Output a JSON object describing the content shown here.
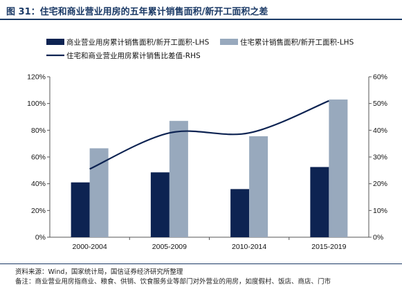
{
  "title": "图 31：住宅和商业营业用房的五年累计销售面积/新开工面积之差",
  "chart_data": {
    "type": "bar",
    "categories": [
      "2000-2004",
      "2005-2009",
      "2010-2014",
      "2015-2019"
    ],
    "series": [
      {
        "name": "商业营业用房累计销售面积/新开工面积-LHS",
        "kind": "bar",
        "axis": "left",
        "color": "#0d2352",
        "values": [
          0.41,
          0.485,
          0.36,
          0.525
        ]
      },
      {
        "name": "住宅累计销售面积/新开工面积-LHS",
        "kind": "bar",
        "axis": "left",
        "color": "#98a9bd",
        "values": [
          0.665,
          0.87,
          0.755,
          1.03
        ]
      },
      {
        "name": "住宅和商业营业用房累计销售比差值-RHS",
        "kind": "line",
        "axis": "right",
        "color": "#0d2352",
        "values": [
          0.255,
          0.39,
          0.39,
          0.51
        ]
      }
    ],
    "y_left": {
      "min": 0,
      "max": 1.2,
      "ticks": [
        0,
        0.2,
        0.4,
        0.6,
        0.8,
        1.0,
        1.2
      ],
      "tick_labels": [
        "0%",
        "20%",
        "40%",
        "60%",
        "80%",
        "100%",
        "120%"
      ]
    },
    "y_right": {
      "min": 0,
      "max": 0.6,
      "ticks": [
        0,
        0.1,
        0.2,
        0.3,
        0.4,
        0.5,
        0.6
      ],
      "tick_labels": [
        "0%",
        "10%",
        "20%",
        "30%",
        "40%",
        "50%",
        "60%"
      ]
    },
    "legend_position": "top",
    "grid": false
  },
  "notes": {
    "source": "资料来源：Wind，国家统计局，国信证券经济研究所整理",
    "remark": "备注：商业营业用房指商业、粮食、供销、饮食服务业等部门对外营业的用房，如度假村、饭店、商店、门市"
  }
}
